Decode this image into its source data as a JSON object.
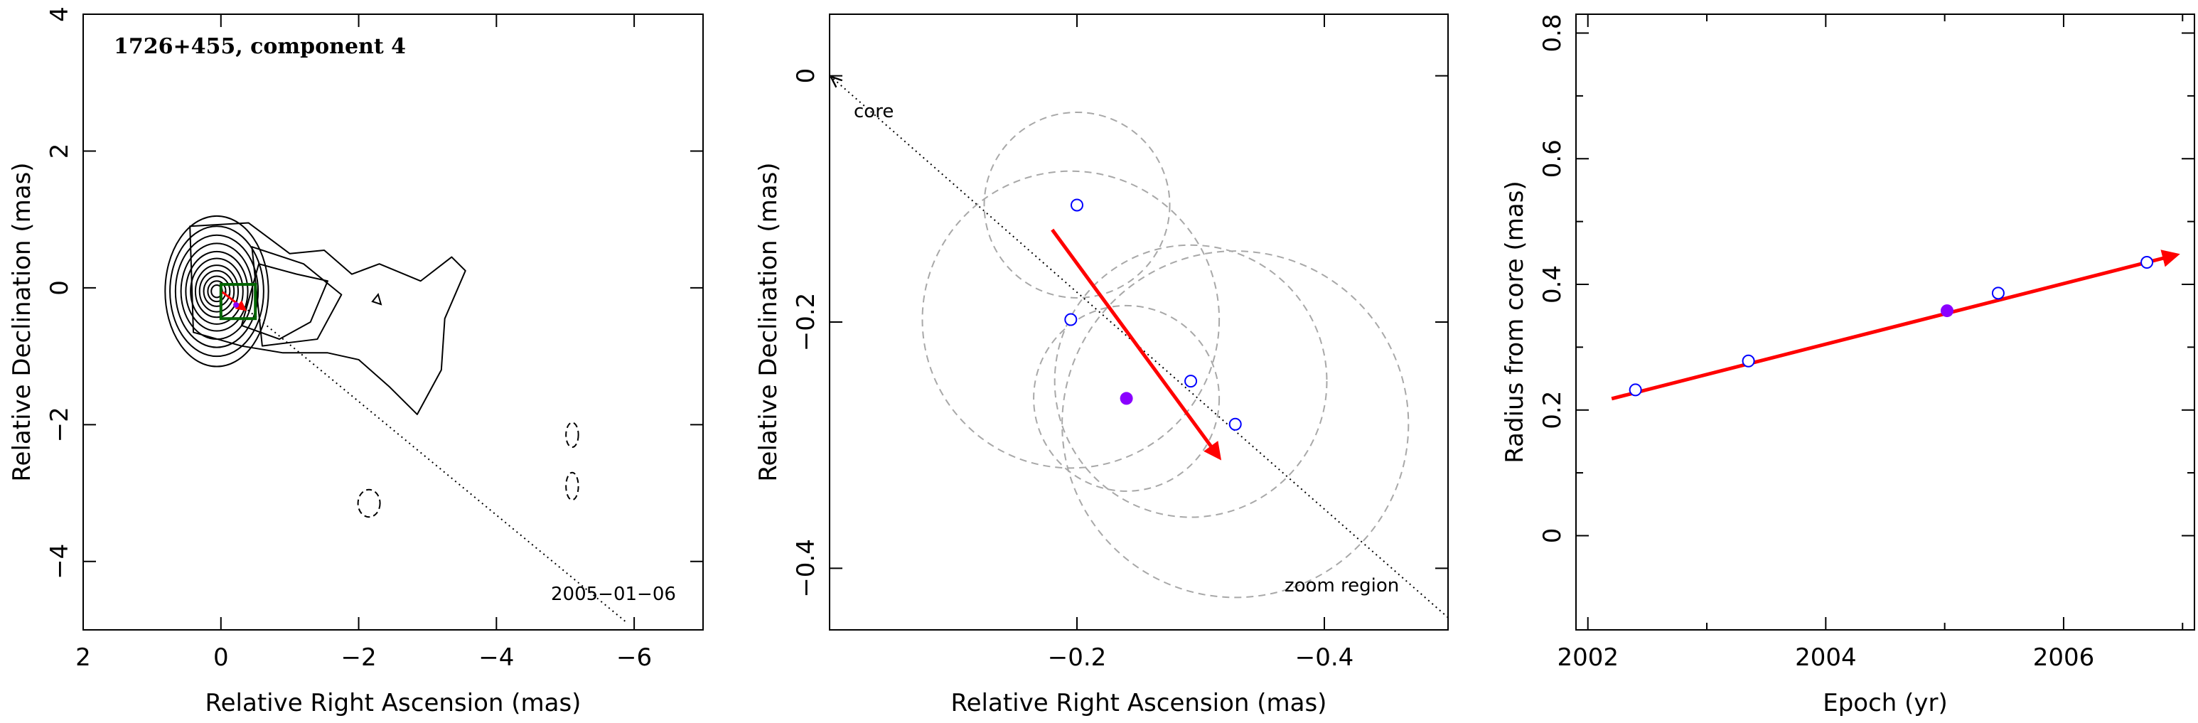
{
  "colors": {
    "motion_arrow": "#ff0000",
    "epoch_open": "#0000ff",
    "epoch_filled": "#8a00ff",
    "zoom_box": "#006400",
    "circles": "#a8a8a8"
  },
  "chart_data": [
    {
      "type": "contour",
      "title": "1726+455, component 4",
      "xlabel": "Relative Right Ascension (mas)",
      "ylabel": "Relative Declination (mas)",
      "xlim": [
        2,
        -7
      ],
      "ylim": [
        -5,
        4
      ],
      "xticks": [
        2,
        0,
        -2,
        -4,
        -6
      ],
      "xtick_labels": [
        "2",
        "0",
        "−2",
        "−4",
        "−6"
      ],
      "yticks": [
        -4,
        -2,
        0,
        2,
        4
      ],
      "ytick_labels": [
        "−4",
        "−2",
        "0",
        "2",
        "4"
      ],
      "date_label": "2005−01−06",
      "core_rings": [
        {
          "rx": 0.75,
          "ry": 1.1
        },
        {
          "rx": 0.68,
          "ry": 0.95
        },
        {
          "rx": 0.6,
          "ry": 0.82
        },
        {
          "rx": 0.52,
          "ry": 0.7
        },
        {
          "rx": 0.45,
          "ry": 0.58
        },
        {
          "rx": 0.38,
          "ry": 0.48
        },
        {
          "rx": 0.31,
          "ry": 0.38
        },
        {
          "rx": 0.25,
          "ry": 0.3
        },
        {
          "rx": 0.19,
          "ry": 0.22
        },
        {
          "rx": 0.13,
          "ry": 0.15
        },
        {
          "rx": 0.08,
          "ry": 0.09
        }
      ],
      "zoom_box": {
        "x": [
          0.0,
          -0.5
        ],
        "y": [
          -0.45,
          0.05
        ]
      },
      "jet_line": {
        "x": [
          0.0,
          -5.9
        ],
        "y": [
          0.0,
          -4.9
        ]
      }
    },
    {
      "type": "scatter",
      "xlabel": "Relative Right Ascension (mas)",
      "ylabel": "Relative Declination (mas)",
      "xlim": [
        0.0,
        -0.5
      ],
      "ylim": [
        -0.45,
        0.05
      ],
      "xticks": [
        -0.2,
        -0.4
      ],
      "xtick_labels": [
        "−0.2",
        "−0.4"
      ],
      "yticks": [
        -0.4,
        -0.2,
        0
      ],
      "ytick_labels": [
        "−0.4",
        "−0.2",
        "0"
      ],
      "core_label": "core",
      "zoom_label": "zoom region",
      "epochs_open": [
        {
          "x": -0.2,
          "y": -0.105
        },
        {
          "x": -0.195,
          "y": -0.198
        },
        {
          "x": -0.292,
          "y": -0.248
        },
        {
          "x": -0.328,
          "y": -0.283
        }
      ],
      "epoch_filled": {
        "x": -0.24,
        "y": -0.262
      },
      "beam_circles": [
        {
          "cx": -0.2,
          "cy": -0.105,
          "r": 0.075
        },
        {
          "cx": -0.195,
          "cy": -0.198,
          "r": 0.12
        },
        {
          "cx": -0.24,
          "cy": -0.262,
          "r": 0.075
        },
        {
          "cx": -0.292,
          "cy": -0.248,
          "r": 0.11
        },
        {
          "cx": -0.328,
          "cy": -0.283,
          "r": 0.14
        }
      ],
      "motion_arrow": {
        "x": [
          -0.18,
          -0.315
        ],
        "y": [
          -0.125,
          -0.31
        ]
      },
      "core_line": {
        "x": [
          0.0,
          -0.5
        ],
        "y": [
          0.0,
          -0.44
        ]
      }
    },
    {
      "type": "scatter",
      "xlabel": "Epoch (yr)",
      "ylabel": "Radius from core (mas)",
      "xlim": [
        2001.9,
        2007.1
      ],
      "ylim": [
        -0.15,
        0.83
      ],
      "xticks": [
        2002,
        2004,
        2006
      ],
      "xtick_labels": [
        "2002",
        "2004",
        "2006"
      ],
      "yticks": [
        0,
        0.2,
        0.4,
        0.6,
        0.8
      ],
      "ytick_labels": [
        "0",
        "0.2",
        "0.4",
        "0.6",
        "0.8"
      ],
      "points_open": [
        {
          "x": 2002.4,
          "y": 0.232
        },
        {
          "x": 2003.35,
          "y": 0.278
        },
        {
          "x": 2005.45,
          "y": 0.386
        },
        {
          "x": 2006.7,
          "y": 0.435
        }
      ],
      "point_filled": {
        "x": 2005.02,
        "y": 0.358
      },
      "fit_arrow": {
        "x": [
          2002.2,
          2006.95
        ],
        "y": [
          0.218,
          0.447
        ]
      }
    }
  ]
}
